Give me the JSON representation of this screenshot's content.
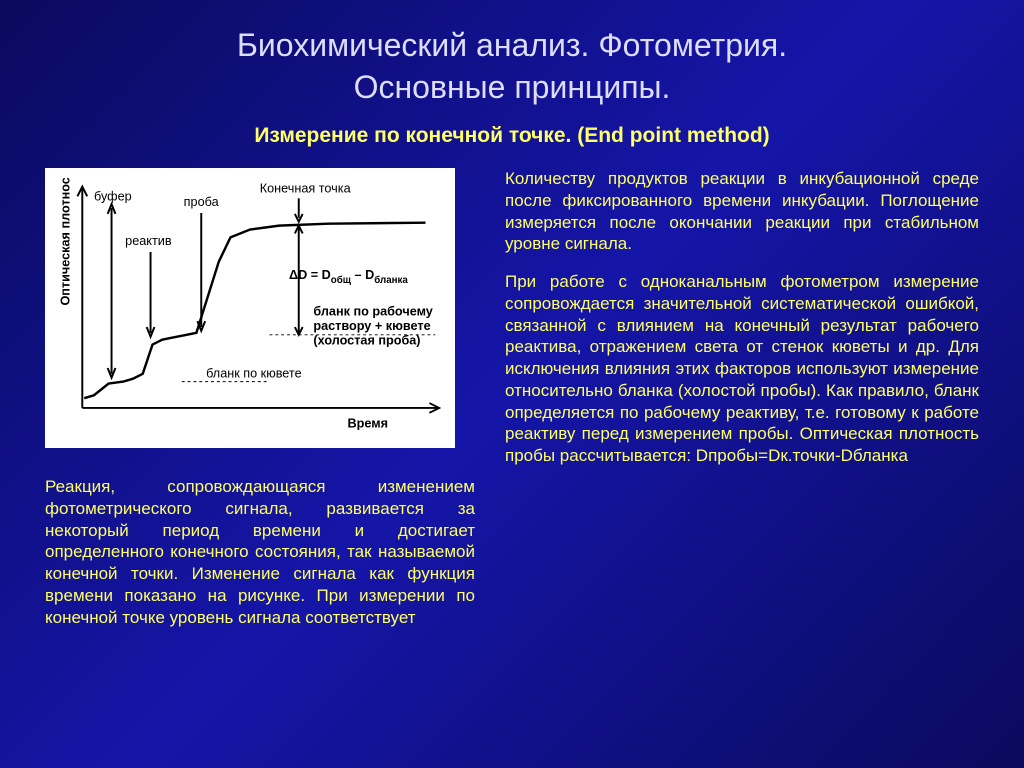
{
  "title_line1": "Биохимический анализ. Фотометрия.",
  "title_line2": "Основные принципы.",
  "subtitle": "Измерение по конечной точке. (End point method)",
  "chart": {
    "type": "line",
    "background_color": "#ffffff",
    "line_color": "#000000",
    "line_width": 2,
    "xlabel": "Время",
    "ylabel": "Оптическая плотность",
    "labels": {
      "buffer": "буфер",
      "reagent": "реактив",
      "sample": "проба",
      "endpoint": "Конечная точка",
      "formula": "ΔD = D",
      "formula_sub1": "общ",
      "formula_mid": " – D",
      "formula_sub2": "бланка",
      "blank_working": "бланк по рабочему",
      "blank_working2": "раствору + кювете",
      "blank_working3": "(холостая проба)",
      "blank_cuvette": "бланк по кювете"
    },
    "curve_points": [
      [
        30,
        225
      ],
      [
        40,
        222
      ],
      [
        55,
        210
      ],
      [
        70,
        208
      ],
      [
        80,
        205
      ],
      [
        90,
        200
      ],
      [
        100,
        170
      ],
      [
        110,
        165
      ],
      [
        120,
        163
      ],
      [
        135,
        160
      ],
      [
        145,
        158
      ],
      [
        168,
        85
      ],
      [
        180,
        60
      ],
      [
        200,
        52
      ],
      [
        230,
        48
      ],
      [
        280,
        46
      ],
      [
        380,
        45
      ]
    ],
    "axis_color": "#000000"
  },
  "left_para": "Реакция, сопровождающаяся изменением фотометрического сигнала, развивается за некоторый период времени и достигает определенного конечного состояния, так называемой конечной точки. Изменение сигнала как функция времени показано на рисунке. При измерении по конечной точке уровень сигнала соответствует",
  "right_para1": "Количеству продуктов реакции в инкубационной среде после фиксированного времени инкубации. Поглощение измеряется после окончании реакции при стабильном уровне сигнала.",
  "right_para2": "При работе с одноканальным фотометром измерение сопровождается значительной систематической ошибкой, связанной с влиянием на конечный результат рабочего реактива, отражением света от стенок кюветы и др. Для исключения влияния этих факторов используют измерение относительно бланка (холостой пробы). Как правило, бланк определяется по рабочему реактиву, т.е. готовому к работе реактиву перед измерением пробы. Оптическая плотность пробы рассчитывается: Dпробы=Dк.точки-Dбланка",
  "colors": {
    "background_gradient_start": "#0a0a5e",
    "background_gradient_mid": "#1515a8",
    "title_color": "#ddddff",
    "text_color": "#ffff66"
  }
}
